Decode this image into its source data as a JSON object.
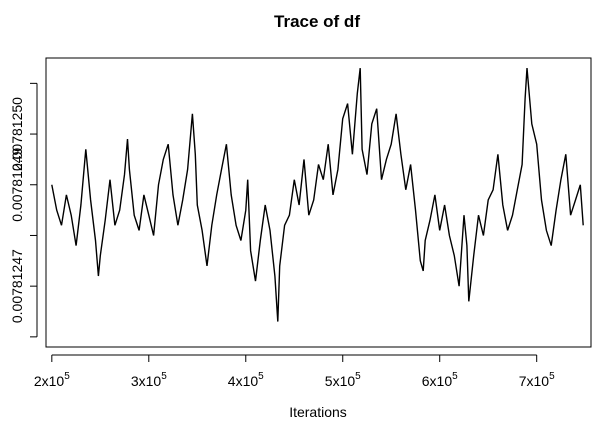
{
  "chart_data": {
    "type": "line",
    "title": "Trace of df",
    "xlabel": "Iterations",
    "ylabel": "",
    "x_ticks": [
      {
        "value": 200000,
        "base": "2x10",
        "exp": "5"
      },
      {
        "value": 300000,
        "base": "3x10",
        "exp": "5"
      },
      {
        "value": 400000,
        "base": "4x10",
        "exp": "5"
      },
      {
        "value": 500000,
        "base": "5x10",
        "exp": "5"
      },
      {
        "value": 600000,
        "base": "6x10",
        "exp": "5"
      },
      {
        "value": 700000,
        "base": "7x10",
        "exp": "5"
      }
    ],
    "y_ticks": [
      {
        "value": 0.00781246,
        "label": ""
      },
      {
        "value": 0.00781247,
        "label": "0.00781247"
      },
      {
        "value": 0.00781248,
        "label": ""
      },
      {
        "value": 0.00781249,
        "label": "0.00781249"
      },
      {
        "value": 0.0078125,
        "label": "0.00781250"
      },
      {
        "value": 0.00781251,
        "label": ""
      }
    ],
    "xlim": [
      194000,
      756000
    ],
    "ylim": [
      0.007812458,
      0.007812515
    ],
    "grid": false,
    "series": [
      {
        "x": [
          200000,
          205000,
          210000,
          215000,
          220000,
          225000,
          230000,
          235000,
          240000,
          245000,
          248000,
          250000,
          255000,
          260000,
          265000,
          270000,
          275000,
          278000,
          280000,
          285000,
          290000,
          295000,
          300000,
          305000,
          310000,
          315000,
          320000,
          325000,
          330000,
          335000,
          340000,
          345000,
          348000,
          350000,
          355000,
          360000,
          365000,
          370000,
          375000,
          380000,
          385000,
          390000,
          395000,
          400000,
          402000,
          405000,
          410000,
          415000,
          420000,
          425000,
          430000,
          433000,
          435000,
          440000,
          445000,
          450000,
          455000,
          460000,
          465000,
          470000,
          475000,
          480000,
          485000,
          490000,
          495000,
          500000,
          505000,
          510000,
          515000,
          518000,
          520000,
          525000,
          530000,
          535000,
          540000,
          545000,
          550000,
          555000,
          560000,
          565000,
          570000,
          575000,
          580000,
          583000,
          585000,
          590000,
          595000,
          600000,
          605000,
          610000,
          615000,
          620000,
          625000,
          628000,
          630000,
          635000,
          640000,
          645000,
          650000,
          655000,
          660000,
          665000,
          670000,
          675000,
          680000,
          685000,
          688000,
          690000,
          695000,
          700000,
          705000,
          710000,
          715000,
          720000,
          725000,
          730000,
          735000,
          740000,
          745000,
          748000
        ],
        "y": [
          0.00781249,
          0.007812485,
          0.007812482,
          0.007812488,
          0.007812484,
          0.007812478,
          0.007812486,
          0.007812497,
          0.007812487,
          0.007812479,
          0.007812472,
          0.007812476,
          0.007812483,
          0.007812491,
          0.007812482,
          0.007812485,
          0.007812492,
          0.007812499,
          0.007812493,
          0.007812484,
          0.007812481,
          0.007812488,
          0.007812484,
          0.00781248,
          0.00781249,
          0.007812495,
          0.007812498,
          0.007812488,
          0.007812482,
          0.007812487,
          0.007812493,
          0.007812504,
          0.007812496,
          0.007812486,
          0.007812481,
          0.007812474,
          0.007812482,
          0.007812488,
          0.007812493,
          0.007812498,
          0.007812488,
          0.007812482,
          0.007812479,
          0.007812485,
          0.007812491,
          0.007812477,
          0.007812471,
          0.007812479,
          0.007812486,
          0.007812481,
          0.007812472,
          0.007812463,
          0.007812474,
          0.007812482,
          0.007812484,
          0.007812491,
          0.007812486,
          0.007812495,
          0.007812484,
          0.007812487,
          0.007812494,
          0.007812491,
          0.007812498,
          0.007812488,
          0.007812493,
          0.007812503,
          0.007812506,
          0.007812496,
          0.007812508,
          0.007812513,
          0.007812497,
          0.007812492,
          0.007812502,
          0.007812505,
          0.007812491,
          0.007812495,
          0.007812498,
          0.007812504,
          0.007812496,
          0.007812489,
          0.007812494,
          0.007812485,
          0.007812475,
          0.007812473,
          0.007812479,
          0.007812483,
          0.007812488,
          0.007812481,
          0.007812486,
          0.00781248,
          0.007812476,
          0.00781247,
          0.007812484,
          0.007812478,
          0.007812467,
          0.007812476,
          0.007812484,
          0.00781248,
          0.007812487,
          0.007812489,
          0.007812496,
          0.007812486,
          0.007812481,
          0.007812484,
          0.007812489,
          0.007812494,
          0.007812507,
          0.007812513,
          0.007812502,
          0.007812498,
          0.007812487,
          0.007812481,
          0.007812478,
          0.007812485,
          0.007812491,
          0.007812496,
          0.007812484,
          0.007812487,
          0.00781249,
          0.007812482
        ]
      }
    ]
  }
}
